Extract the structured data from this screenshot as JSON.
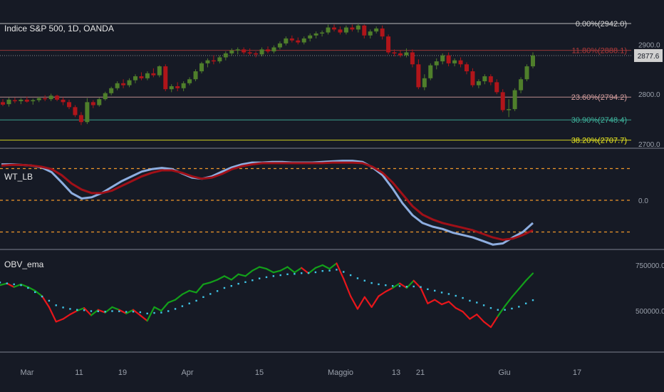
{
  "header": {
    "symbol_title": "Indice S&P 500, 1D, OANDA"
  },
  "colors": {
    "background": "#161a25",
    "bull": "#4f7f2b",
    "bear": "#b0151a",
    "wt_fast": "#8eaee0",
    "wt_slow": "#a01018",
    "obv_up": "#13a01a",
    "obv_down": "#e8161b",
    "obv_ema": "#3fc6e8",
    "level_line": "#f0962a"
  },
  "chart_data": [
    {
      "name": "price",
      "type": "candlestick",
      "title": "Indice S&P 500, 1D, OANDA",
      "y_axis_ticks": [
        "2900.0",
        "2800.0",
        "2700.0"
      ],
      "last_price": "2877.6",
      "candles": [
        [
          2784,
          2790,
          2776,
          2779
        ],
        [
          2780,
          2793,
          2775,
          2789
        ],
        [
          2788,
          2793,
          2782,
          2786
        ],
        [
          2786,
          2792,
          2780,
          2789
        ],
        [
          2789,
          2795,
          2783,
          2785
        ],
        [
          2786,
          2791,
          2779,
          2788
        ],
        [
          2788,
          2795,
          2784,
          2792
        ],
        [
          2792,
          2798,
          2786,
          2790
        ],
        [
          2790,
          2801,
          2786,
          2797
        ],
        [
          2797,
          2799,
          2786,
          2789
        ],
        [
          2789,
          2794,
          2778,
          2784
        ],
        [
          2784,
          2789,
          2770,
          2774
        ],
        [
          2774,
          2778,
          2754,
          2758
        ],
        [
          2758,
          2764,
          2738,
          2744
        ],
        [
          2744,
          2792,
          2740,
          2784
        ],
        [
          2784,
          2788,
          2772,
          2778
        ],
        [
          2778,
          2793,
          2775,
          2790
        ],
        [
          2790,
          2805,
          2787,
          2802
        ],
        [
          2802,
          2815,
          2798,
          2812
        ],
        [
          2812,
          2826,
          2808,
          2822
        ],
        [
          2822,
          2830,
          2812,
          2818
        ],
        [
          2818,
          2832,
          2814,
          2828
        ],
        [
          2828,
          2840,
          2822,
          2836
        ],
        [
          2836,
          2844,
          2828,
          2832
        ],
        [
          2832,
          2846,
          2828,
          2842
        ],
        [
          2842,
          2852,
          2834,
          2838
        ],
        [
          2838,
          2858,
          2834,
          2856
        ],
        [
          2856,
          2860,
          2806,
          2810
        ],
        [
          2810,
          2820,
          2804,
          2816
        ],
        [
          2816,
          2824,
          2806,
          2812
        ],
        [
          2812,
          2826,
          2806,
          2822
        ],
        [
          2822,
          2834,
          2818,
          2830
        ],
        [
          2830,
          2850,
          2826,
          2846
        ],
        [
          2846,
          2865,
          2842,
          2862
        ],
        [
          2862,
          2872,
          2854,
          2868
        ],
        [
          2868,
          2878,
          2860,
          2866
        ],
        [
          2866,
          2878,
          2862,
          2874
        ],
        [
          2874,
          2886,
          2868,
          2882
        ],
        [
          2882,
          2892,
          2878,
          2888
        ],
        [
          2888,
          2894,
          2880,
          2890
        ],
        [
          2890,
          2894,
          2880,
          2884
        ],
        [
          2884,
          2892,
          2878,
          2882
        ],
        [
          2882,
          2886,
          2874,
          2880
        ],
        [
          2880,
          2894,
          2876,
          2890
        ],
        [
          2890,
          2896,
          2882,
          2886
        ],
        [
          2886,
          2898,
          2882,
          2894
        ],
        [
          2894,
          2906,
          2890,
          2902
        ],
        [
          2902,
          2916,
          2898,
          2912
        ],
        [
          2912,
          2918,
          2904,
          2908
        ],
        [
          2908,
          2914,
          2900,
          2904
        ],
        [
          2904,
          2916,
          2900,
          2912
        ],
        [
          2912,
          2922,
          2906,
          2918
        ],
        [
          2918,
          2926,
          2912,
          2922
        ],
        [
          2922,
          2928,
          2916,
          2924
        ],
        [
          2924,
          2940,
          2920,
          2934
        ],
        [
          2934,
          2940,
          2926,
          2930
        ],
        [
          2930,
          2936,
          2920,
          2924
        ],
        [
          2924,
          2938,
          2920,
          2934
        ],
        [
          2934,
          2940,
          2926,
          2930
        ],
        [
          2930,
          2942,
          2924,
          2938
        ],
        [
          2938,
          2940,
          2912,
          2918
        ],
        [
          2918,
          2930,
          2912,
          2926
        ],
        [
          2926,
          2936,
          2922,
          2932
        ],
        [
          2932,
          2938,
          2910,
          2916
        ],
        [
          2916,
          2920,
          2880,
          2884
        ],
        [
          2884,
          2890,
          2876,
          2882
        ],
        [
          2882,
          2888,
          2874,
          2878
        ],
        [
          2878,
          2892,
          2874,
          2884
        ],
        [
          2884,
          2890,
          2854,
          2860
        ],
        [
          2860,
          2870,
          2810,
          2814
        ],
        [
          2814,
          2840,
          2808,
          2832
        ],
        [
          2832,
          2862,
          2828,
          2858
        ],
        [
          2858,
          2872,
          2850,
          2866
        ],
        [
          2866,
          2882,
          2860,
          2878
        ],
        [
          2878,
          2884,
          2856,
          2862
        ],
        [
          2862,
          2872,
          2856,
          2868
        ],
        [
          2868,
          2874,
          2854,
          2860
        ],
        [
          2860,
          2864,
          2840,
          2846
        ],
        [
          2846,
          2852,
          2814,
          2818
        ],
        [
          2818,
          2830,
          2812,
          2826
        ],
        [
          2826,
          2840,
          2820,
          2836
        ],
        [
          2836,
          2840,
          2818,
          2824
        ],
        [
          2824,
          2830,
          2800,
          2804
        ],
        [
          2804,
          2810,
          2764,
          2768
        ],
        [
          2768,
          2790,
          2754,
          2770
        ],
        [
          2770,
          2812,
          2766,
          2808
        ],
        [
          2808,
          2834,
          2802,
          2830
        ],
        [
          2830,
          2860,
          2826,
          2856
        ],
        [
          2856,
          2884,
          2852,
          2878
        ]
      ],
      "fibonacci_levels": [
        {
          "label": "0.00%(2942.0)",
          "value": 2942.0,
          "color": "#d8d8d8"
        },
        {
          "label": "11.80%(2888.1)",
          "value": 2888.1,
          "color": "#b03a3a"
        },
        {
          "label": "23.60%(2794.2)",
          "value": 2794.2,
          "color": "#d8a0a0"
        },
        {
          "label": "30.90%(2748.4)",
          "value": 2748.4,
          "color": "#3fb8a0"
        },
        {
          "label": "38.20%(2707.7)",
          "value": 2707.7,
          "color": "#f0f020"
        }
      ]
    },
    {
      "name": "wt",
      "type": "line",
      "title": "WT_LB",
      "y_axis_ticks": [
        "0.0"
      ],
      "levels": [
        53,
        0,
        -53
      ],
      "series": [
        {
          "values": [
            60,
            60,
            59,
            58,
            55,
            47,
            30,
            12,
            3,
            5,
            12,
            22,
            32,
            40,
            48,
            52,
            54,
            52,
            45,
            38,
            36,
            40,
            48,
            55,
            60,
            63,
            63,
            64,
            64,
            63,
            63,
            63,
            64,
            65,
            66,
            66,
            64,
            55,
            42,
            20,
            -5,
            -25,
            -38,
            -44,
            -48,
            -54,
            -58,
            -62,
            -68,
            -74,
            -72,
            -62,
            -53,
            -38
          ]
        },
        {
          "values": [
            58,
            59,
            59,
            58,
            56,
            52,
            42,
            28,
            18,
            12,
            12,
            16,
            24,
            32,
            40,
            46,
            50,
            50,
            46,
            40,
            36,
            38,
            44,
            52,
            57,
            60,
            62,
            62,
            62,
            62,
            62,
            62,
            62,
            63,
            63,
            63,
            62,
            56,
            46,
            30,
            10,
            -10,
            -24,
            -32,
            -38,
            -42,
            -46,
            -50,
            -56,
            -62,
            -66,
            -64,
            -58,
            -50
          ]
        }
      ]
    },
    {
      "name": "obv",
      "type": "line",
      "title": "OBV_ema",
      "y_axis_ticks": [
        "750000.0",
        "500000.0"
      ],
      "obv": [
        640000,
        650000,
        630000,
        645000,
        630000,
        610000,
        580000,
        520000,
        440000,
        455000,
        480000,
        500000,
        515000,
        475000,
        505000,
        490000,
        520000,
        505000,
        485000,
        505000,
        475000,
        445000,
        520000,
        500000,
        545000,
        560000,
        590000,
        610000,
        600000,
        645000,
        655000,
        670000,
        690000,
        670000,
        700000,
        690000,
        720000,
        740000,
        730000,
        710000,
        720000,
        740000,
        710000,
        735000,
        705000,
        735000,
        750000,
        730000,
        760000,
        675000,
        580000,
        510000,
        575000,
        520000,
        580000,
        605000,
        625000,
        650000,
        625000,
        665000,
        625000,
        540000,
        560000,
        535000,
        550000,
        515000,
        495000,
        455000,
        480000,
        440000,
        410000,
        470000,
        525000,
        575000,
        620000,
        665000,
        705000
      ],
      "ema": [
        655000,
        650000,
        645000,
        640000,
        625000,
        602000,
        578000,
        555000,
        530000,
        518000,
        510000,
        505000,
        503000,
        498000,
        497000,
        495000,
        498000,
        497000,
        494000,
        495000,
        492000,
        485000,
        488000,
        490000,
        498000,
        510000,
        525000,
        540000,
        555000,
        575000,
        592000,
        608000,
        625000,
        636000,
        648000,
        657000,
        667000,
        677000,
        684000,
        690000,
        695000,
        700000,
        702000,
        706000,
        707000,
        711000,
        718000,
        720000,
        725000,
        713000,
        695000,
        678000,
        665000,
        652000,
        645000,
        640000,
        636000,
        635000,
        632000,
        633000,
        630000,
        618000,
        610000,
        600000,
        592000,
        582000,
        570000,
        555000,
        545000,
        530000,
        515000,
        505000,
        505000,
        512000,
        522000,
        540000,
        558000
      ]
    }
  ],
  "x_axis": {
    "labels": [
      "Mar",
      "11",
      "19",
      "Apr",
      "15",
      "Maggio",
      "13",
      "21",
      "Giu",
      "17"
    ]
  }
}
